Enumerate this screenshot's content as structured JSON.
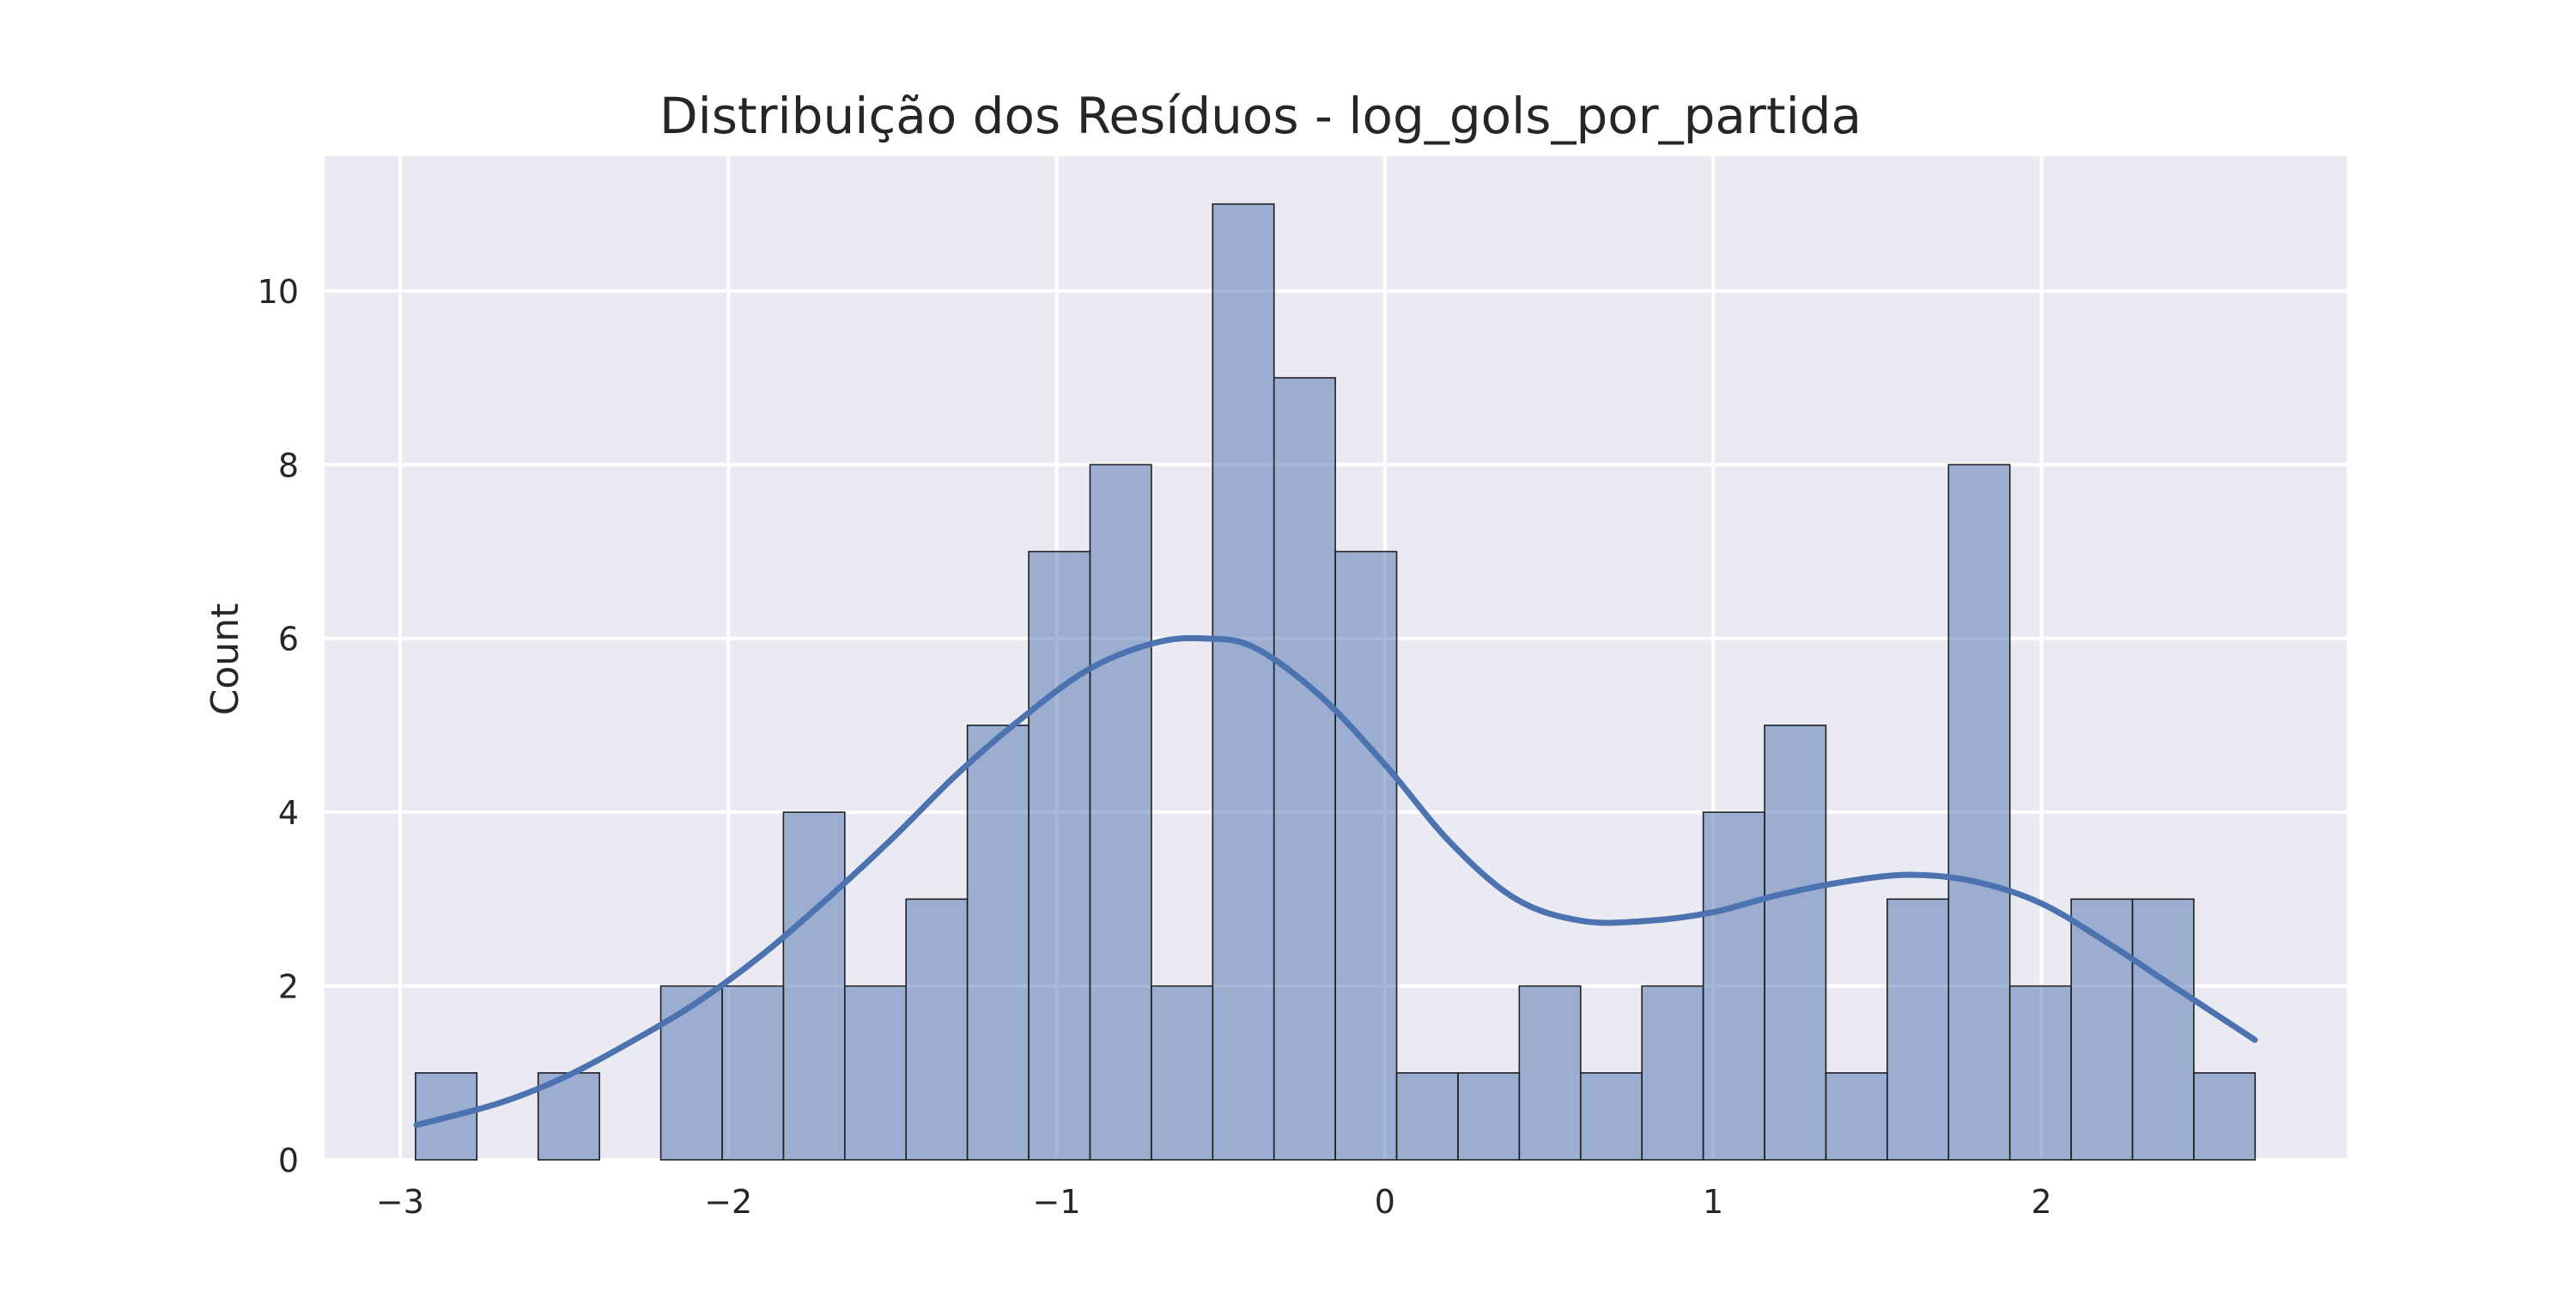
{
  "chart_data": {
    "type": "histogram",
    "title": "Distribuição dos Resíduos - log_gols_por_partida",
    "xlabel": "",
    "ylabel": "Count",
    "xlim": [
      -3.23,
      2.93
    ],
    "ylim": [
      0,
      11.55
    ],
    "grid": true,
    "legend": "none",
    "x_ticks": [
      -3,
      -2,
      -1,
      0,
      1,
      2
    ],
    "x_tick_labels": [
      "−3",
      "−2",
      "−1",
      "0",
      "1",
      "2"
    ],
    "y_ticks": [
      0,
      2,
      4,
      6,
      8,
      10
    ],
    "y_tick_labels": [
      "0",
      "2",
      "4",
      "6",
      "8",
      "10"
    ],
    "bin_start": -2.953,
    "bin_width": 0.1868,
    "counts": [
      1,
      0,
      1,
      0,
      2,
      2,
      4,
      2,
      3,
      5,
      7,
      8,
      2,
      11,
      9,
      7,
      1,
      1,
      2,
      1,
      2,
      4,
      5,
      1,
      3,
      8,
      2,
      3,
      3,
      1
    ],
    "kde": {
      "x": [
        -2.95,
        -2.7,
        -2.5,
        -2.3,
        -2.1,
        -1.9,
        -1.7,
        -1.5,
        -1.3,
        -1.1,
        -0.9,
        -0.7,
        -0.55,
        -0.4,
        -0.2,
        0.0,
        0.2,
        0.4,
        0.6,
        0.8,
        1.0,
        1.2,
        1.4,
        1.6,
        1.8,
        2.0,
        2.2,
        2.4,
        2.65
      ],
      "y": [
        0.4,
        0.65,
        0.95,
        1.35,
        1.8,
        2.35,
        3.0,
        3.7,
        4.45,
        5.1,
        5.65,
        5.95,
        6.0,
        5.9,
        5.35,
        4.55,
        3.65,
        3.0,
        2.75,
        2.75,
        2.85,
        3.05,
        3.2,
        3.28,
        3.2,
        2.95,
        2.5,
        2.0,
        1.38
      ]
    },
    "colors": {
      "background": "#eaeaf2",
      "grid": "#ffffff",
      "bar_fill": "#4c72b0",
      "bar_opacity": 0.5,
      "bar_edge": "#1f1f1f",
      "kde_line": "#4c72b0"
    }
  }
}
